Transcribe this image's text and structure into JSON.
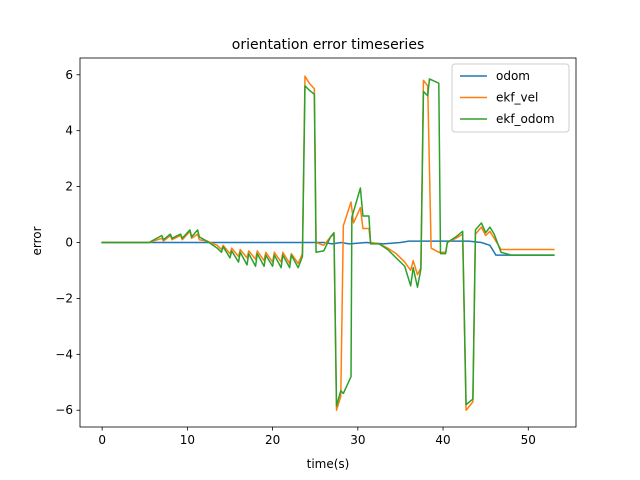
{
  "chart_data": {
    "type": "line",
    "title": "orientation error timeseries",
    "xlabel": "time(s)",
    "ylabel": "error",
    "xlim": [
      -2.6,
      55.6
    ],
    "ylim": [
      -6.6,
      6.6
    ],
    "xticks": [
      0,
      10,
      20,
      30,
      40,
      50
    ],
    "yticks": [
      -6,
      -4,
      -2,
      0,
      2,
      4,
      6
    ],
    "grid": false,
    "legend_position": "upper right",
    "series": [
      {
        "name": "odom",
        "color": "#1f77b4",
        "points": [
          [
            0,
            0
          ],
          [
            10,
            0
          ],
          [
            15,
            0
          ],
          [
            20,
            0
          ],
          [
            26,
            0
          ],
          [
            27,
            -0.05
          ],
          [
            28,
            0
          ],
          [
            29,
            -0.05
          ],
          [
            31,
            0
          ],
          [
            33,
            -0.05
          ],
          [
            35,
            0
          ],
          [
            36,
            0.05
          ],
          [
            40,
            0.05
          ],
          [
            43,
            0.05
          ],
          [
            44.5,
            0
          ],
          [
            45.5,
            -0.1
          ],
          [
            46.2,
            -0.45
          ],
          [
            47,
            -0.45
          ],
          [
            48,
            -0.45
          ],
          [
            53,
            -0.45
          ]
        ]
      },
      {
        "name": "ekf_vel",
        "color": "#ff7f0e",
        "points": [
          [
            0,
            0
          ],
          [
            5.5,
            0
          ],
          [
            7,
            0.15
          ],
          [
            7.2,
            0.05
          ],
          [
            8,
            0.25
          ],
          [
            8.2,
            0.1
          ],
          [
            9.2,
            0.25
          ],
          [
            9.4,
            0.1
          ],
          [
            10.3,
            0.4
          ],
          [
            10.5,
            0.15
          ],
          [
            11.2,
            0.3
          ],
          [
            11.4,
            0.1
          ],
          [
            12.3,
            0.05
          ],
          [
            13.5,
            -0.1
          ],
          [
            14,
            -0.25
          ],
          [
            14.2,
            -0.1
          ],
          [
            15,
            -0.4
          ],
          [
            15.2,
            -0.2
          ],
          [
            16,
            -0.5
          ],
          [
            16.2,
            -0.25
          ],
          [
            17,
            -0.55
          ],
          [
            17.2,
            -0.3
          ],
          [
            18,
            -0.6
          ],
          [
            18.2,
            -0.3
          ],
          [
            19,
            -0.65
          ],
          [
            19.2,
            -0.35
          ],
          [
            20,
            -0.7
          ],
          [
            20.2,
            -0.35
          ],
          [
            21,
            -0.7
          ],
          [
            21.2,
            -0.35
          ],
          [
            22,
            -0.75
          ],
          [
            22.2,
            -0.4
          ],
          [
            23,
            -0.75
          ],
          [
            23.5,
            -0.4
          ],
          [
            23.8,
            5.95
          ],
          [
            24.3,
            5.7
          ],
          [
            24.9,
            5.5
          ],
          [
            25.1,
            0
          ],
          [
            26,
            -0.1
          ],
          [
            26.8,
            0.2
          ],
          [
            27.2,
            0.3
          ],
          [
            27.5,
            -6.0
          ],
          [
            28,
            -5.5
          ],
          [
            28.3,
            0.6
          ],
          [
            29.2,
            1.45
          ],
          [
            29.5,
            0.7
          ],
          [
            30.3,
            1.25
          ],
          [
            30.6,
            0.5
          ],
          [
            31.3,
            0.5
          ],
          [
            31.5,
            0
          ],
          [
            32.5,
            -0.05
          ],
          [
            33.5,
            -0.2
          ],
          [
            34.5,
            -0.4
          ],
          [
            35.5,
            -0.7
          ],
          [
            36.2,
            -1.0
          ],
          [
            36.5,
            -0.65
          ],
          [
            37,
            -1.15
          ],
          [
            37.4,
            -0.9
          ],
          [
            37.7,
            5.8
          ],
          [
            38.2,
            5.6
          ],
          [
            38.6,
            -0.2
          ],
          [
            39.5,
            -0.35
          ],
          [
            40.3,
            -0.35
          ],
          [
            40.5,
            0
          ],
          [
            41.5,
            0.15
          ],
          [
            42.3,
            0.3
          ],
          [
            42.7,
            -6.0
          ],
          [
            43.5,
            -5.7
          ],
          [
            43.8,
            0.3
          ],
          [
            44.5,
            0.55
          ],
          [
            45,
            0.25
          ],
          [
            45.5,
            0.4
          ],
          [
            46,
            0.15
          ],
          [
            46.8,
            -0.25
          ],
          [
            48,
            -0.25
          ],
          [
            53,
            -0.25
          ]
        ]
      },
      {
        "name": "ekf_odom",
        "color": "#2ca02c",
        "points": [
          [
            0,
            0
          ],
          [
            5.5,
            0
          ],
          [
            7,
            0.25
          ],
          [
            7.2,
            0.1
          ],
          [
            8,
            0.3
          ],
          [
            8.2,
            0.15
          ],
          [
            9.2,
            0.3
          ],
          [
            9.4,
            0.15
          ],
          [
            10.3,
            0.45
          ],
          [
            10.5,
            0.2
          ],
          [
            11.2,
            0.45
          ],
          [
            11.4,
            0.2
          ],
          [
            12.3,
            0.05
          ],
          [
            13.5,
            -0.2
          ],
          [
            14,
            -0.35
          ],
          [
            14.2,
            -0.15
          ],
          [
            15,
            -0.55
          ],
          [
            15.2,
            -0.3
          ],
          [
            16,
            -0.7
          ],
          [
            16.2,
            -0.35
          ],
          [
            17,
            -0.8
          ],
          [
            17.2,
            -0.4
          ],
          [
            18,
            -0.85
          ],
          [
            18.2,
            -0.4
          ],
          [
            19,
            -0.85
          ],
          [
            19.2,
            -0.45
          ],
          [
            20,
            -0.85
          ],
          [
            20.2,
            -0.45
          ],
          [
            21,
            -0.9
          ],
          [
            21.2,
            -0.45
          ],
          [
            22,
            -0.9
          ],
          [
            22.2,
            -0.45
          ],
          [
            23,
            -0.9
          ],
          [
            23.5,
            -0.5
          ],
          [
            23.8,
            5.6
          ],
          [
            24.3,
            5.45
          ],
          [
            24.9,
            5.3
          ],
          [
            25.1,
            -0.35
          ],
          [
            26,
            -0.3
          ],
          [
            26.8,
            0.2
          ],
          [
            27.2,
            0.35
          ],
          [
            27.5,
            -5.85
          ],
          [
            28,
            -5.3
          ],
          [
            28.3,
            -5.4
          ],
          [
            29.2,
            -4.8
          ],
          [
            29.3,
            0.9
          ],
          [
            30.3,
            1.95
          ],
          [
            30.6,
            0.95
          ],
          [
            31.3,
            0.95
          ],
          [
            31.5,
            -0.05
          ],
          [
            32.5,
            -0.05
          ],
          [
            33.5,
            -0.25
          ],
          [
            34.5,
            -0.55
          ],
          [
            35.5,
            -0.85
          ],
          [
            36.2,
            -1.55
          ],
          [
            36.5,
            -0.9
          ],
          [
            37,
            -1.6
          ],
          [
            37.4,
            -0.95
          ],
          [
            37.7,
            5.4
          ],
          [
            38.2,
            5.25
          ],
          [
            38.4,
            5.85
          ],
          [
            39.5,
            5.7
          ],
          [
            39.7,
            -0.4
          ],
          [
            40.3,
            -0.4
          ],
          [
            40.5,
            0
          ],
          [
            41.5,
            0.2
          ],
          [
            42.3,
            0.4
          ],
          [
            42.7,
            -5.8
          ],
          [
            43.5,
            -5.6
          ],
          [
            43.8,
            0.45
          ],
          [
            44.5,
            0.7
          ],
          [
            45,
            0.35
          ],
          [
            45.5,
            0.55
          ],
          [
            46,
            0.3
          ],
          [
            46.8,
            -0.35
          ],
          [
            48,
            -0.45
          ],
          [
            53,
            -0.45
          ]
        ]
      }
    ]
  }
}
